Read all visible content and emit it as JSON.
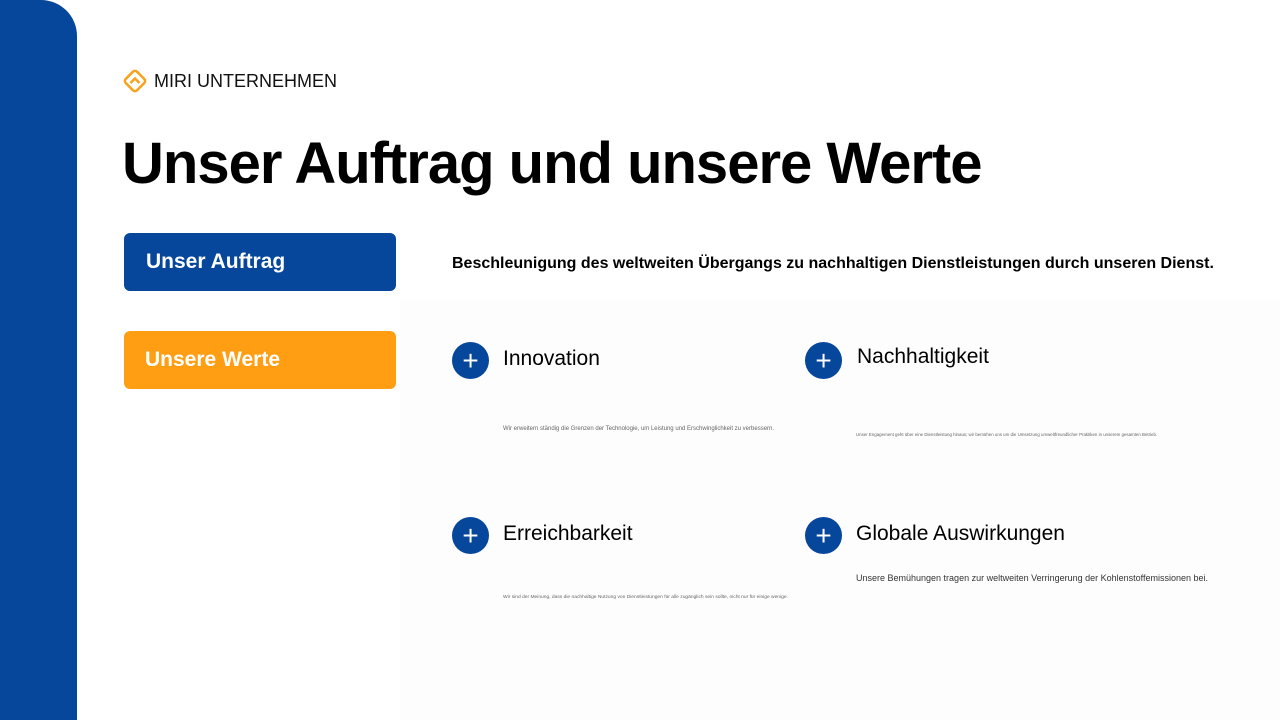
{
  "brand": {
    "name": "MIRI UNTERNEHMEN",
    "logo_color": "#f7a21b"
  },
  "page_title": "Unser Auftrag und unsere Werte",
  "buttons": {
    "mission": "Unser Auftrag",
    "values": "Unsere Werte"
  },
  "mission_text": "Beschleunigung des weltweiten Übergangs zu nachhaltigen Dienstleistungen durch unseren Dienst.",
  "values": [
    {
      "title": "Innovation",
      "desc": "Wir erweitern ständig die Grenzen der Technologie, um Leistung und Erschwinglichkeit zu verbessern."
    },
    {
      "title": "Nachhaltigkeit",
      "desc": "Unser Engagement geht über eine Dienstleistung hinaus; wir bemühen uns um die Umsetzung umweltfreundlicher Praktiken in unserem gesamten Betrieb."
    },
    {
      "title": "Erreichbarkeit",
      "desc": "Wir sind der Meinung, dass die nachhaltige Nutzung von Dienstleistungen für alle zugänglich sein sollte, nicht nur für einige wenige."
    },
    {
      "title": "Globale Auswirkungen",
      "desc": "Unsere Bemühungen tragen zur weltweiten Verringerung der Kohlenstoffemissionen bei."
    }
  ],
  "plus_symbol": "+",
  "colors": {
    "primary": "#06479b",
    "accent": "#ff9e12"
  }
}
